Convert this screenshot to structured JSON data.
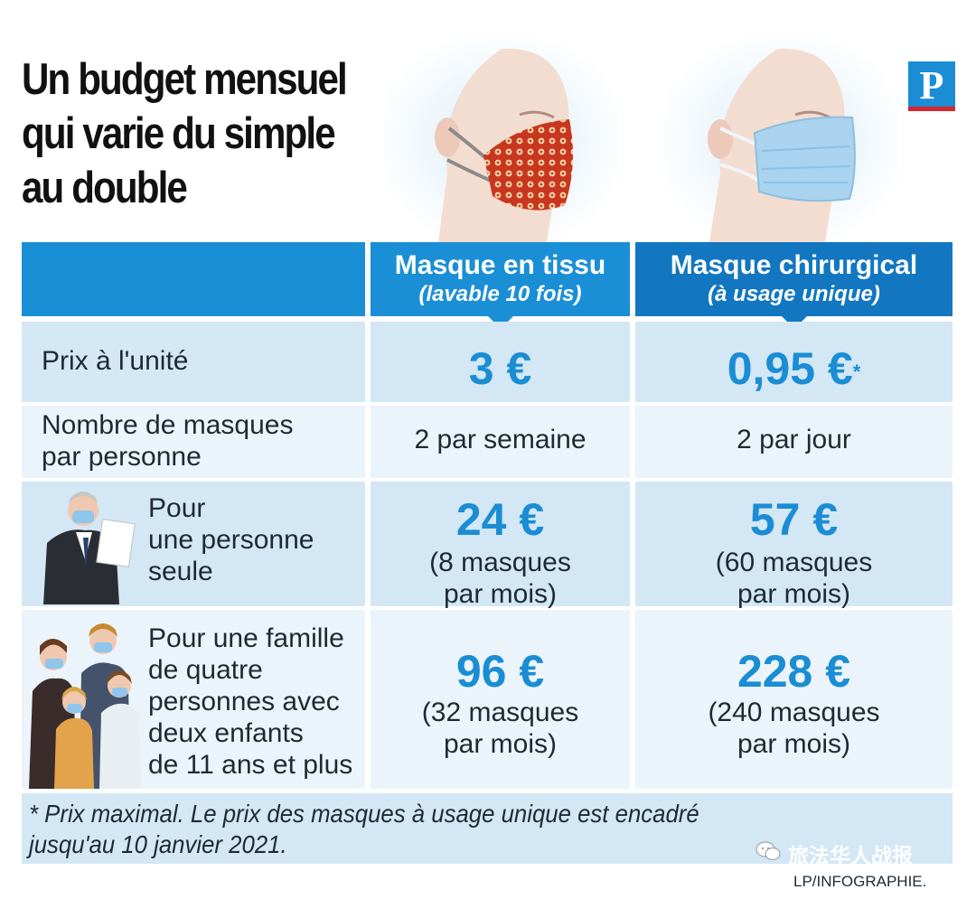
{
  "title": {
    "line1": "Un budget mensuel",
    "line2": "qui varie du simple",
    "line3": "au double"
  },
  "logo": {
    "letter": "P"
  },
  "colors": {
    "accent": "#1b8fd6",
    "accent_dark": "#1277c0",
    "row_dark": "#d3e7f5",
    "row_light": "#ebf4fb",
    "logo_red": "#d7262d"
  },
  "chart_data": {
    "type": "table",
    "title": "Un budget mensuel qui varie du simple au double",
    "columns": [
      {
        "name": "Masque en tissu",
        "note": "(lavable 10 fois)"
      },
      {
        "name": "Masque chirurgical",
        "note": "(à usage unique)"
      }
    ],
    "rows": [
      {
        "label": "Prix à l'unité",
        "values": [
          "3 €",
          "0,95 €"
        ],
        "marker": "*"
      },
      {
        "label_lines": [
          "Nombre de masques",
          "par personne"
        ],
        "values": [
          "2 par semaine",
          "2 par jour"
        ]
      },
      {
        "label_lines": [
          "Pour",
          "une personne",
          "seule"
        ],
        "values": [
          "24 €",
          "57 €"
        ],
        "details": [
          [
            "(8 masques",
            "par mois)"
          ],
          [
            "(60 masques",
            "par mois)"
          ]
        ]
      },
      {
        "label_lines": [
          "Pour une famille",
          "de quatre",
          "personnes avec",
          "deux enfants",
          "de 11 ans et plus"
        ],
        "values": [
          "96 €",
          "228 €"
        ],
        "details": [
          [
            "(32 masques",
            "par mois)"
          ],
          [
            "(240 masques",
            "par mois)"
          ]
        ]
      }
    ],
    "footnote": [
      "* Prix maximal. Le prix des masques à usage unique est encadré",
      "jusqu'au 10 janvier 2021."
    ]
  },
  "watermark": "旅法华人战报",
  "credit": "LP/INFOGRAPHIE."
}
